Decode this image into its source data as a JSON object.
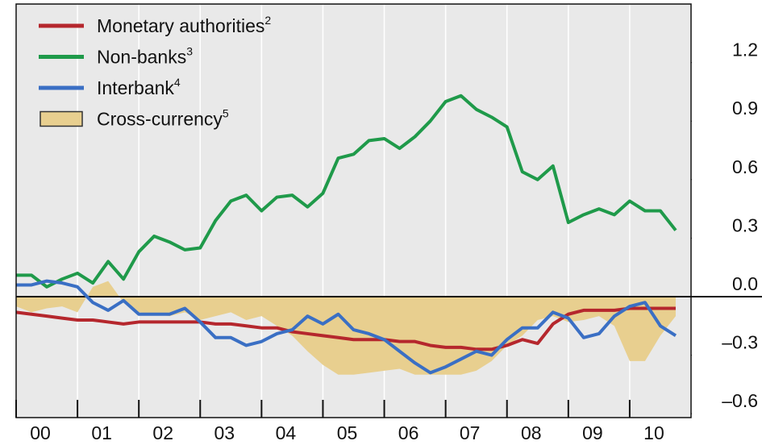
{
  "chart_data": {
    "type": "line",
    "x": [
      2000,
      2000.25,
      2000.5,
      2000.75,
      2001,
      2001.25,
      2001.5,
      2001.75,
      2002,
      2002.25,
      2002.5,
      2002.75,
      2003,
      2003.25,
      2003.5,
      2003.75,
      2004,
      2004.25,
      2004.5,
      2004.75,
      2005,
      2005.25,
      2005.5,
      2005.75,
      2006,
      2006.25,
      2006.5,
      2006.75,
      2007,
      2007.25,
      2007.5,
      2007.75,
      2008,
      2008.25,
      2008.5,
      2008.75,
      2009,
      2009.25,
      2009.5,
      2009.75,
      2010,
      2010.25,
      2010.5,
      2010.75
    ],
    "series": [
      {
        "name": "Monetary authorities",
        "note": "2",
        "kind": "line",
        "color": "#b5272d",
        "values": [
          -0.08,
          -0.09,
          -0.1,
          -0.11,
          -0.12,
          -0.12,
          -0.13,
          -0.14,
          -0.13,
          -0.13,
          -0.13,
          -0.13,
          -0.13,
          -0.14,
          -0.14,
          -0.15,
          -0.16,
          -0.16,
          -0.18,
          -0.19,
          -0.2,
          -0.21,
          -0.22,
          -0.22,
          -0.22,
          -0.23,
          -0.23,
          -0.25,
          -0.26,
          -0.26,
          -0.27,
          -0.27,
          -0.25,
          -0.22,
          -0.24,
          -0.14,
          -0.09,
          -0.07,
          -0.07,
          -0.07,
          -0.06,
          -0.06,
          -0.06,
          -0.06
        ]
      },
      {
        "name": "Non-banks",
        "note": "3",
        "kind": "line",
        "color": "#1f9a4a",
        "values": [
          0.11,
          0.11,
          0.05,
          0.09,
          0.12,
          0.07,
          0.18,
          0.09,
          0.23,
          0.31,
          0.28,
          0.24,
          0.25,
          0.39,
          0.49,
          0.52,
          0.44,
          0.51,
          0.52,
          0.46,
          0.53,
          0.71,
          0.73,
          0.8,
          0.81,
          0.76,
          0.82,
          0.9,
          1.0,
          1.03,
          0.96,
          0.92,
          0.87,
          0.64,
          0.6,
          0.67,
          0.38,
          0.42,
          0.45,
          0.42,
          0.49,
          0.44,
          0.44,
          0.34
        ]
      },
      {
        "name": "Interbank",
        "note": "4",
        "kind": "line",
        "color": "#3a6fc4",
        "values": [
          0.06,
          0.06,
          0.08,
          0.07,
          0.05,
          -0.03,
          -0.07,
          -0.02,
          -0.09,
          -0.09,
          -0.09,
          -0.06,
          -0.13,
          -0.21,
          -0.21,
          -0.25,
          -0.23,
          -0.19,
          -0.17,
          -0.1,
          -0.14,
          -0.09,
          -0.17,
          -0.19,
          -0.22,
          -0.28,
          -0.34,
          -0.39,
          -0.36,
          -0.32,
          -0.28,
          -0.3,
          -0.22,
          -0.16,
          -0.16,
          -0.08,
          -0.11,
          -0.21,
          -0.19,
          -0.1,
          -0.05,
          -0.03,
          -0.15,
          -0.2
        ]
      },
      {
        "name": "Cross-currency",
        "note": "5",
        "kind": "area",
        "color": "#e8cf8f",
        "values": [
          -0.05,
          -0.08,
          -0.06,
          -0.05,
          -0.08,
          0.05,
          0.08,
          -0.03,
          -0.08,
          -0.09,
          -0.1,
          -0.08,
          -0.12,
          -0.1,
          -0.08,
          -0.12,
          -0.1,
          -0.15,
          -0.2,
          -0.28,
          -0.35,
          -0.4,
          -0.4,
          -0.39,
          -0.38,
          -0.37,
          -0.4,
          -0.4,
          -0.4,
          -0.4,
          -0.38,
          -0.33,
          -0.25,
          -0.2,
          -0.12,
          -0.1,
          -0.13,
          -0.12,
          -0.1,
          -0.15,
          -0.33,
          -0.33,
          -0.2,
          -0.1
        ]
      }
    ],
    "xlim": [
      2000,
      2011
    ],
    "xticks": [
      {
        "value": 2000,
        "label": "00"
      },
      {
        "value": 2001,
        "label": "01"
      },
      {
        "value": 2002,
        "label": "02"
      },
      {
        "value": 2003,
        "label": "03"
      },
      {
        "value": 2004,
        "label": "04"
      },
      {
        "value": 2005,
        "label": "05"
      },
      {
        "value": 2006,
        "label": "06"
      },
      {
        "value": 2007,
        "label": "07"
      },
      {
        "value": 2008,
        "label": "08"
      },
      {
        "value": 2009,
        "label": "09"
      },
      {
        "value": 2010,
        "label": "10"
      }
    ],
    "ylim": [
      -0.62,
      1.5
    ],
    "yticks": [
      {
        "value": -0.6,
        "label": "–0.6"
      },
      {
        "value": -0.3,
        "label": "–0.3"
      },
      {
        "value": 0,
        "label": "0.0"
      },
      0.3,
      0.6,
      0.9,
      1.2
    ],
    "grid": true
  }
}
